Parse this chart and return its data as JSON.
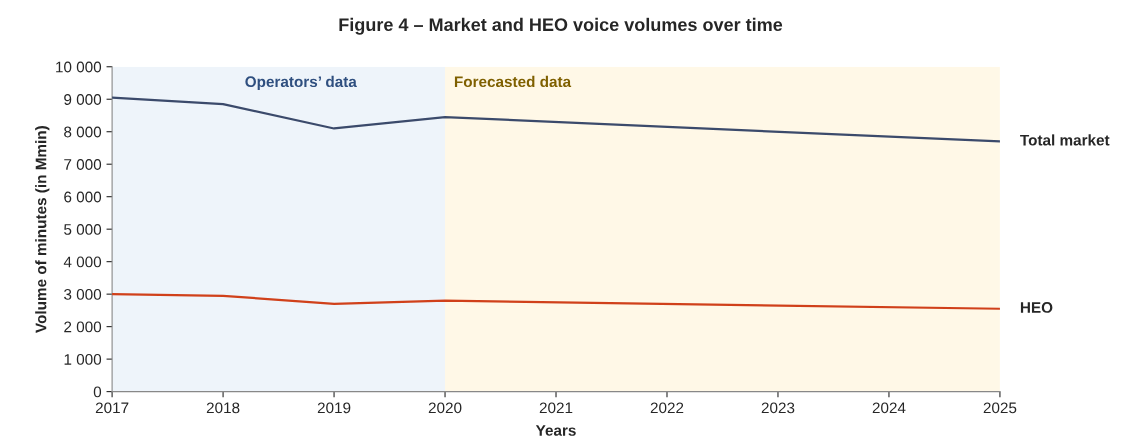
{
  "chart_data": {
    "type": "line",
    "title": "Figure 4 – Market and HEO voice volumes over time",
    "xlabel": "Years",
    "ylabel": "Volume of minutes (in Mmin)",
    "series": [
      {
        "name": "Total market",
        "color": "#3b4a6b",
        "x": [
          2017,
          2018,
          2019,
          2020,
          2025
        ],
        "values": [
          9050,
          8850,
          8100,
          8450,
          7700
        ]
      },
      {
        "name": "HEO",
        "color": "#d0401a",
        "x": [
          2017,
          2018,
          2019,
          2020,
          2025
        ],
        "values": [
          3000,
          2950,
          2700,
          2800,
          2550
        ]
      }
    ],
    "bands": [
      {
        "axis": "x",
        "from": 2017,
        "to": 2020,
        "label": "Operators’ data",
        "color": "#eef4fa"
      },
      {
        "axis": "x",
        "from": 2020,
        "to": 2025,
        "label": "Forecasted data",
        "color": "#fff8e7"
      }
    ],
    "xlim": [
      2017,
      2025
    ],
    "xticks": [
      2017,
      2018,
      2019,
      2020,
      2021,
      2022,
      2023,
      2024,
      2025
    ],
    "ylim": [
      0,
      10000
    ],
    "yticks": [
      {
        "value": 0,
        "label": "0"
      },
      {
        "value": 1000,
        "label": "1 000"
      },
      {
        "value": 2000,
        "label": "2 000"
      },
      {
        "value": 3000,
        "label": "3 000"
      },
      {
        "value": 4000,
        "label": "4 000"
      },
      {
        "value": 5000,
        "label": "5 000"
      },
      {
        "value": 6000,
        "label": "6 000"
      },
      {
        "value": 7000,
        "label": "7 000"
      },
      {
        "value": 8000,
        "label": "8 000"
      },
      {
        "value": 9000,
        "label": "9 000"
      },
      {
        "value": 10000,
        "label": "10 000"
      }
    ],
    "grid": false,
    "legend": false,
    "marker": "none",
    "line_style": "solid"
  }
}
